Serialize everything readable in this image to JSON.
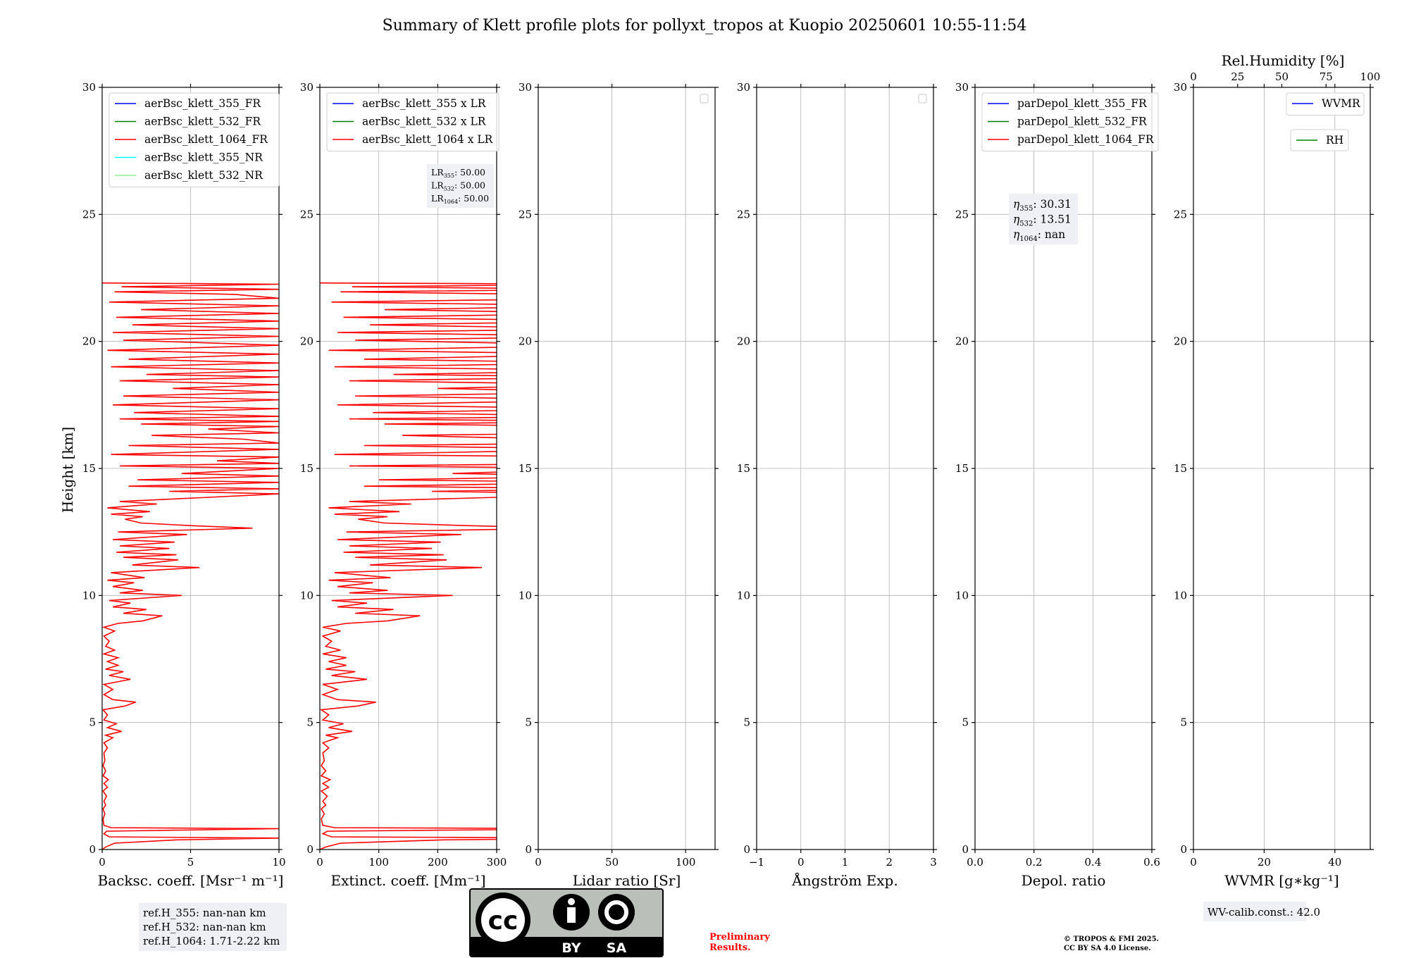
{
  "figure": {
    "title": "Summary of Klett profile plots for pollyxt_tropos at Kuopio 20250601 10:55-11:54",
    "ylabel": "Height [km]",
    "ref_heights": [
      "ref.H_355: nan-nan km",
      "ref.H_532: nan-nan km",
      "ref.H_1064: 1.71-2.22 km"
    ],
    "wv_calib": "WV-calib.const.: 42.0",
    "preliminary": [
      "Preliminary",
      "Results."
    ],
    "copyright": [
      "© TROPOS & FMI 2025.",
      "CC BY SA 4.0 License."
    ],
    "license_labels": {
      "cc": "cc",
      "by": "BY",
      "sa": "SA"
    }
  },
  "colors": {
    "blue": "#0000ff",
    "green": "#008000",
    "red": "#ff0000",
    "cyan": "#00ffff",
    "lightgreen": "#90ee90",
    "grid": "#b0b0b0",
    "annotation_bg": "#eef0f5",
    "preliminary": "#ff0000"
  },
  "chart_data": [
    {
      "type": "line",
      "id": "backscatter",
      "xlabel": "Backsc. coeff. [Msr$^{-1}$ m$^{-1}$]",
      "xlabel_text": "Backsc. coeff. [Msr⁻¹ m⁻¹]",
      "xlim": [
        0,
        10
      ],
      "xticks": [
        0,
        5,
        10
      ],
      "ylim": [
        0,
        30
      ],
      "yticks": [
        0,
        5,
        10,
        15,
        20,
        25,
        30
      ],
      "legend": [
        {
          "label": "aerBsc_klett_355_FR",
          "color": "#0000ff"
        },
        {
          "label": "aerBsc_klett_532_FR",
          "color": "#008000"
        },
        {
          "label": "aerBsc_klett_1064_FR",
          "color": "#ff0000"
        },
        {
          "label": "aerBsc_klett_355_NR",
          "color": "#00ffff"
        },
        {
          "label": "aerBsc_klett_532_NR",
          "color": "#90ee90"
        }
      ],
      "series": [
        {
          "name": "aerBsc_klett_1064_FR",
          "color": "#ff0000",
          "points": [
            [
              0,
              0.0
            ],
            [
              0.2,
              0.1
            ],
            [
              0.7,
              0.25
            ],
            [
              4.2,
              0.38
            ],
            [
              10,
              0.45
            ],
            [
              0.4,
              0.5
            ],
            [
              0.1,
              0.62
            ],
            [
              0.25,
              0.72
            ],
            [
              10,
              0.82
            ],
            [
              0.5,
              0.86
            ],
            [
              0.1,
              0.95
            ],
            [
              0.05,
              1.2
            ],
            [
              0.15,
              1.4
            ],
            [
              0.05,
              1.6
            ],
            [
              0.2,
              1.75
            ],
            [
              0.1,
              1.9
            ],
            [
              0.25,
              2.1
            ],
            [
              0.05,
              2.3
            ],
            [
              0.3,
              2.45
            ],
            [
              0.1,
              2.6
            ],
            [
              0.35,
              2.75
            ],
            [
              0.05,
              2.9
            ],
            [
              0.2,
              3.1
            ],
            [
              0.05,
              3.3
            ],
            [
              0.15,
              3.5
            ],
            [
              0.1,
              3.8
            ],
            [
              0.3,
              4.0
            ],
            [
              0.1,
              4.2
            ],
            [
              0.6,
              4.4
            ],
            [
              0.2,
              4.5
            ],
            [
              1.1,
              4.65
            ],
            [
              0.3,
              4.8
            ],
            [
              0.8,
              4.95
            ],
            [
              0.1,
              5.1
            ],
            [
              0.3,
              5.3
            ],
            [
              0.05,
              5.5
            ],
            [
              1.3,
              5.65
            ],
            [
              1.9,
              5.8
            ],
            [
              0.6,
              5.9
            ],
            [
              0.1,
              6.1
            ],
            [
              0.6,
              6.3
            ],
            [
              0.1,
              6.5
            ],
            [
              1.6,
              6.7
            ],
            [
              0.4,
              6.85
            ],
            [
              1.2,
              7.0
            ],
            [
              0.2,
              7.1
            ],
            [
              0.9,
              7.25
            ],
            [
              0.3,
              7.4
            ],
            [
              0.9,
              7.55
            ],
            [
              0.1,
              7.7
            ],
            [
              0.7,
              7.85
            ],
            [
              0.2,
              8.0
            ],
            [
              0.4,
              8.2
            ],
            [
              0.1,
              8.4
            ],
            [
              0.7,
              8.6
            ],
            [
              0.1,
              8.75
            ],
            [
              0.9,
              8.9
            ],
            [
              2.3,
              9.0
            ],
            [
              3.4,
              9.2
            ],
            [
              1.2,
              9.3
            ],
            [
              2.5,
              9.45
            ],
            [
              0.6,
              9.55
            ],
            [
              1.6,
              9.7
            ],
            [
              0.4,
              9.8
            ],
            [
              4.5,
              10.0
            ],
            [
              1.0,
              10.1
            ],
            [
              2.3,
              10.2
            ],
            [
              0.6,
              10.35
            ],
            [
              1.8,
              10.5
            ],
            [
              0.3,
              10.6
            ],
            [
              2.4,
              10.7
            ],
            [
              0.5,
              10.9
            ],
            [
              5.5,
              11.1
            ],
            [
              1.7,
              11.2
            ],
            [
              4.3,
              11.4
            ],
            [
              1.2,
              11.5
            ],
            [
              4.2,
              11.6
            ],
            [
              0.8,
              11.7
            ],
            [
              3.8,
              11.85
            ],
            [
              1.0,
              11.95
            ],
            [
              4.1,
              12.1
            ],
            [
              0.6,
              12.2
            ],
            [
              4.8,
              12.4
            ],
            [
              0.9,
              12.5
            ],
            [
              8.5,
              12.65
            ],
            [
              5.0,
              12.75
            ],
            [
              2.2,
              12.85
            ],
            [
              1.3,
              13.0
            ],
            [
              2.3,
              13.1
            ],
            [
              0.5,
              13.2
            ],
            [
              2.7,
              13.3
            ],
            [
              0.3,
              13.45
            ],
            [
              3.1,
              13.6
            ],
            [
              1.0,
              13.7
            ],
            [
              5.6,
              13.85
            ],
            [
              10,
              14.0
            ],
            [
              3.8,
              14.1
            ],
            [
              10,
              14.2
            ],
            [
              1.5,
              14.3
            ],
            [
              10,
              14.45
            ],
            [
              2.0,
              14.55
            ],
            [
              10,
              14.7
            ],
            [
              4.5,
              14.8
            ],
            [
              10,
              15.0
            ],
            [
              1.0,
              15.1
            ],
            [
              10,
              15.2
            ],
            [
              6.5,
              15.3
            ],
            [
              10,
              15.45
            ],
            [
              0.5,
              15.55
            ],
            [
              10,
              15.75
            ],
            [
              1.5,
              15.9
            ],
            [
              10,
              16.0
            ],
            [
              8.0,
              16.15
            ],
            [
              2.8,
              16.3
            ],
            [
              10,
              16.4
            ],
            [
              6.0,
              16.55
            ],
            [
              10,
              16.65
            ],
            [
              2.2,
              16.75
            ],
            [
              10,
              16.85
            ],
            [
              1.0,
              16.95
            ],
            [
              10,
              17.05
            ],
            [
              1.8,
              17.2
            ],
            [
              10,
              17.35
            ],
            [
              0.6,
              17.5
            ],
            [
              10,
              17.7
            ],
            [
              1.2,
              17.85
            ],
            [
              10,
              18.0
            ],
            [
              4.0,
              18.15
            ],
            [
              10,
              18.3
            ],
            [
              1.0,
              18.45
            ],
            [
              10,
              18.6
            ],
            [
              2.5,
              18.7
            ],
            [
              10,
              18.85
            ],
            [
              0.5,
              19.0
            ],
            [
              10,
              19.15
            ],
            [
              1.5,
              19.3
            ],
            [
              10,
              19.5
            ],
            [
              0.3,
              19.65
            ],
            [
              10,
              19.85
            ],
            [
              1.2,
              20.05
            ],
            [
              10,
              20.2
            ],
            [
              0.6,
              20.35
            ],
            [
              10,
              20.5
            ],
            [
              1.7,
              20.65
            ],
            [
              10,
              20.8
            ],
            [
              0.8,
              20.95
            ],
            [
              10,
              21.1
            ],
            [
              2.2,
              21.25
            ],
            [
              10,
              21.4
            ],
            [
              0.4,
              21.55
            ],
            [
              10,
              21.7
            ],
            [
              7.5,
              21.85
            ],
            [
              0.7,
              21.95
            ],
            [
              10,
              22.05
            ],
            [
              1.1,
              22.15
            ],
            [
              10,
              22.25
            ],
            [
              0,
              22.3
            ]
          ]
        }
      ]
    },
    {
      "type": "line",
      "id": "extinction",
      "xlabel_text": "Extinct. coeff. [Mm⁻¹]",
      "xlim": [
        0,
        300
      ],
      "xticks": [
        0,
        100,
        200,
        300
      ],
      "ylim": [
        0,
        30
      ],
      "yticks": [
        0,
        5,
        10,
        15,
        20,
        25,
        30
      ],
      "legend": [
        {
          "label": "aerBsc_klett_355 x LR",
          "color": "#0000ff"
        },
        {
          "label": "aerBsc_klett_532 x LR",
          "color": "#008000"
        },
        {
          "label": "aerBsc_klett_1064 x LR",
          "color": "#ff0000"
        }
      ],
      "lidar_ratios": [
        {
          "sym": "LR",
          "sub": "355",
          "value": ": 50.00"
        },
        {
          "sym": "LR",
          "sub": "532",
          "value": ": 50.00"
        },
        {
          "sym": "LR",
          "sub": "1064",
          "value": ": 50.00"
        }
      ],
      "series": [
        {
          "name": "aerBsc_klett_1064 x LR",
          "color": "#ff0000",
          "derived_from": "backscatter",
          "scale": 50
        }
      ]
    },
    {
      "type": "line",
      "id": "lidar-ratio",
      "xlabel_text": "Lidar ratio [Sr]",
      "xlim": [
        0,
        120
      ],
      "xticks": [
        0,
        50,
        100
      ],
      "ylim": [
        0,
        30
      ],
      "yticks": [
        0,
        5,
        10,
        15,
        20,
        25,
        30
      ],
      "legend": [],
      "series": []
    },
    {
      "type": "line",
      "id": "angstrom",
      "xlabel_text": "Ångström Exp.",
      "xlim": [
        -1,
        3
      ],
      "xticks": [
        -1,
        0,
        1,
        2,
        3
      ],
      "ylim": [
        0,
        30
      ],
      "yticks": [
        0,
        5,
        10,
        15,
        20,
        25,
        30
      ],
      "legend": [],
      "series": []
    },
    {
      "type": "line",
      "id": "depol",
      "xlabel_text": "Depol. ratio",
      "xlim": [
        0,
        0.6
      ],
      "xticks": [
        0.0,
        0.2,
        0.4,
        0.6
      ],
      "xtick_labels": [
        "0.0",
        "0.2",
        "0.4",
        "0.6"
      ],
      "ylim": [
        0,
        30
      ],
      "yticks": [
        0,
        5,
        10,
        15,
        20,
        25,
        30
      ],
      "legend": [
        {
          "label": "parDepol_klett_355_FR",
          "color": "#0000ff"
        },
        {
          "label": "parDepol_klett_532_FR",
          "color": "#008000"
        },
        {
          "label": "parDepol_klett_1064_FR",
          "color": "#ff0000"
        }
      ],
      "eta": [
        {
          "sym": "η",
          "sub": "355",
          "value": ": 30.31"
        },
        {
          "sym": "η",
          "sub": "532",
          "value": ": 13.51"
        },
        {
          "sym": "η",
          "sub": "1064",
          "value": ": nan"
        }
      ],
      "series": []
    },
    {
      "type": "line",
      "id": "wvmr",
      "xlabel_text": "WVMR [g∗kg⁻¹]",
      "xlim": [
        0,
        50
      ],
      "xticks": [
        0,
        20,
        40
      ],
      "ylim": [
        0,
        30
      ],
      "yticks": [
        0,
        5,
        10,
        15,
        20,
        25,
        30
      ],
      "top_axis": {
        "label": "Rel.Humidity [%]",
        "xlim": [
          0,
          100
        ],
        "xticks": [
          0,
          25,
          50,
          75,
          100
        ]
      },
      "legend": [
        {
          "label": "WVMR",
          "color": "#0000ff"
        }
      ],
      "legend2": [
        {
          "label": "RH",
          "color": "#008000"
        }
      ],
      "series": []
    }
  ]
}
